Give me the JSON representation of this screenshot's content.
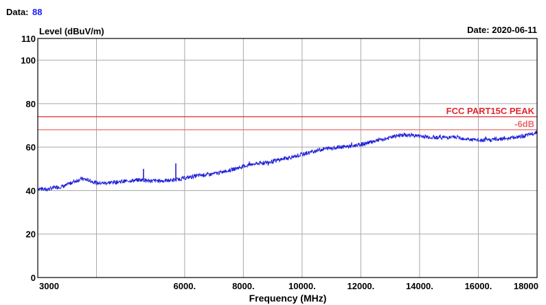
{
  "header": {
    "data_label": "Data:",
    "data_value": "88",
    "level_label": "Level (dBuV/m)",
    "date_label": "Date: 2020-06-11"
  },
  "colors": {
    "data_value": "#1a1aff",
    "trace": "#1e1ed8",
    "limit_line": "#e0262e",
    "limit_label": "#e0262e",
    "margin_line": "#e96a6a",
    "margin_label": "#e96a6a",
    "grid": "#a8a8a8",
    "axis": "#000000"
  },
  "chart_data": {
    "type": "line",
    "xlabel": "Frequency (MHz)",
    "ylabel": "Level (dBuV/m)",
    "xlim": [
      1000,
      18000
    ],
    "ylim": [
      0,
      110
    ],
    "x_tick_values": [
      3000,
      6000,
      8000,
      10000,
      12000,
      14000,
      16000,
      18000
    ],
    "x_tick_labels": [
      "3000",
      "6000.",
      "8000.",
      "10000.",
      "12000.",
      "14000.",
      "16000.",
      "18000"
    ],
    "x_grid_values": [
      1000,
      3000,
      6000,
      8000,
      10000,
      12000,
      14000,
      16000,
      18000
    ],
    "y_tick_values": [
      0,
      20,
      40,
      60,
      80,
      100,
      110
    ],
    "y_tick_labels": [
      "0",
      "20",
      "40",
      "60",
      "80",
      "100",
      "110"
    ],
    "y_grid_values": [
      20,
      40,
      60,
      80,
      100
    ],
    "grid": true,
    "limit_lines": [
      {
        "name": "FCC PART15C PEAK",
        "value": 74
      },
      {
        "name": "-6dB",
        "value": 68
      }
    ],
    "series": [
      {
        "x": [
          1000,
          1300,
          1600,
          1900,
          2200,
          2500,
          2800,
          3000,
          3300,
          3700,
          4100,
          4500,
          4900,
          5300,
          5700,
          6100,
          6500,
          6900,
          7300,
          7700,
          8100,
          8500,
          8900,
          9300,
          9700,
          10100,
          10500,
          10900,
          11300,
          11700,
          12100,
          12500,
          12900,
          13300,
          13700,
          14100,
          14500,
          14900,
          15300,
          15700,
          16100,
          16500,
          16900,
          17300,
          17700,
          18000
        ],
        "values": [
          41,
          40.5,
          41.5,
          42,
          44,
          45.5,
          44.5,
          43.5,
          43.5,
          44,
          44.5,
          45,
          44.5,
          44.5,
          45,
          46,
          47,
          47.5,
          48.5,
          50,
          51.5,
          52.5,
          53,
          54.5,
          55.5,
          57,
          58.5,
          59.5,
          60,
          60.5,
          61.5,
          63,
          64,
          65.5,
          65.5,
          65,
          64.5,
          64.5,
          64.5,
          63.5,
          63,
          63.5,
          64,
          64.5,
          65.5,
          67
        ],
        "spikes": [
          {
            "x": 4600,
            "value": 50
          },
          {
            "x": 5700,
            "value": 52.5
          }
        ]
      }
    ]
  }
}
